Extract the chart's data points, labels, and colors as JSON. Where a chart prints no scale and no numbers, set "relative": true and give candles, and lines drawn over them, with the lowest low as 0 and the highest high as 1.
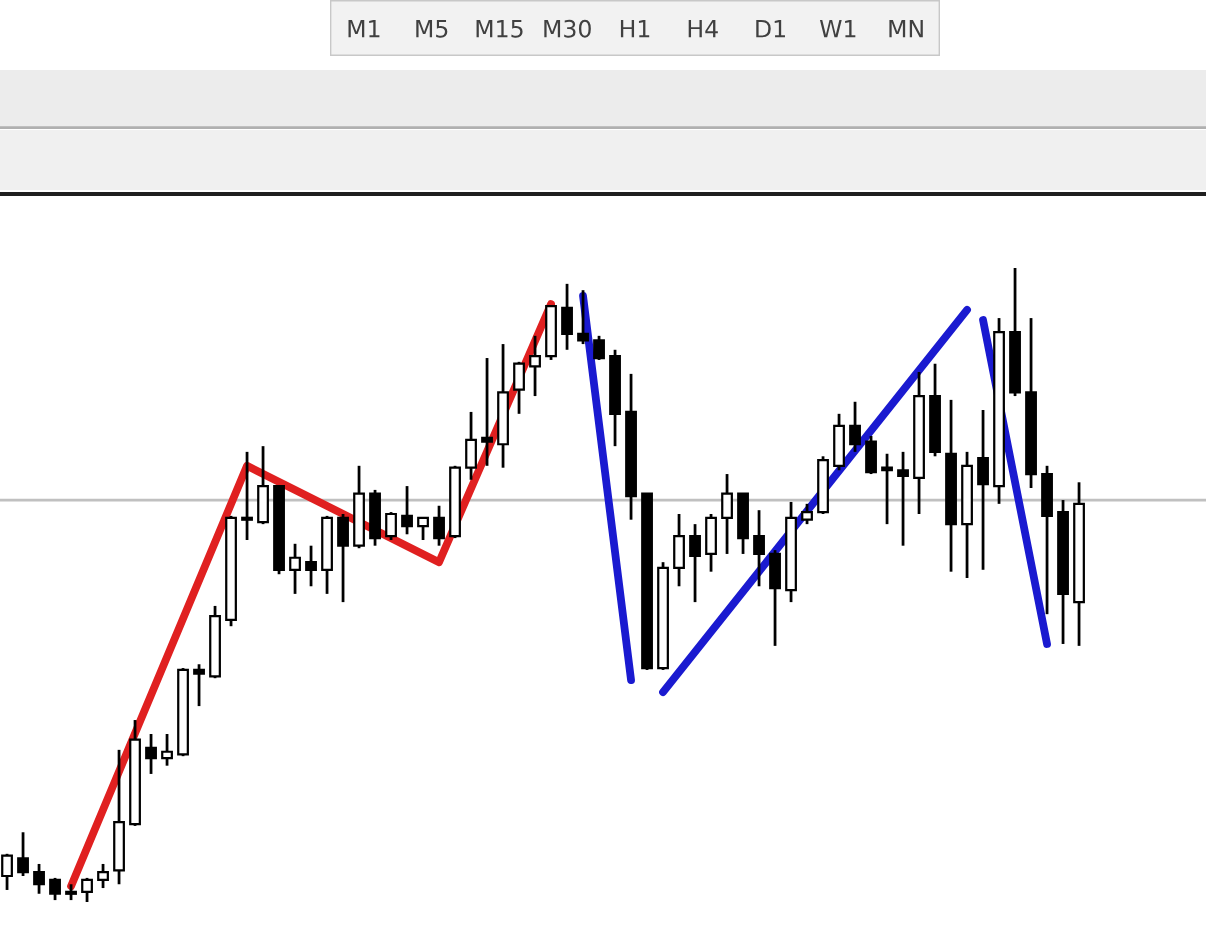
{
  "chart_data": {
    "type": "candlestick",
    "relative": true,
    "categories": [
      null,
      null,
      null,
      null,
      null,
      null,
      null,
      null,
      null,
      null,
      null,
      null,
      null,
      null,
      null,
      null,
      null,
      null,
      null,
      null,
      null,
      null,
      null,
      null,
      null,
      null,
      null,
      null,
      null,
      null,
      null,
      null,
      null,
      null,
      null,
      null,
      null,
      null,
      null,
      null,
      null,
      null,
      null,
      null,
      null,
      null,
      null,
      null,
      null,
      null,
      null,
      null,
      null,
      null,
      null,
      null,
      null,
      null,
      null,
      null,
      null,
      null,
      null,
      null,
      null,
      null,
      null,
      null
    ],
    "ohlc": [
      [
        0.041,
        0.076,
        0.019,
        0.073
      ],
      [
        0.069,
        0.11,
        0.041,
        0.047
      ],
      [
        0.047,
        0.06,
        0.013,
        0.028
      ],
      [
        0.035,
        0.038,
        0.003,
        0.013
      ],
      [
        0.016,
        0.028,
        0.003,
        0.013
      ],
      [
        0.016,
        0.038,
        0,
        0.035
      ],
      [
        0.035,
        0.06,
        0.022,
        0.047
      ],
      [
        0.05,
        0.24,
        0.028,
        0.126
      ],
      [
        0.123,
        0.287,
        0.12,
        0.256
      ],
      [
        0.243,
        0.265,
        0.202,
        0.227
      ],
      [
        0.227,
        0.265,
        0.215,
        0.237
      ],
      [
        0.233,
        0.369,
        0.23,
        0.366
      ],
      [
        0.366,
        0.375,
        0.309,
        0.36
      ],
      [
        0.356,
        0.467,
        0.353,
        0.451
      ],
      [
        0.445,
        0.609,
        0.435,
        0.606
      ],
      [
        0.606,
        0.71,
        0.571,
        0.603
      ],
      [
        0.599,
        0.719,
        0.596,
        0.656
      ],
      [
        0.656,
        0.656,
        0.517,
        0.524
      ],
      [
        0.524,
        0.565,
        0.486,
        0.543
      ],
      [
        0.536,
        0.562,
        0.498,
        0.524
      ],
      [
        0.524,
        0.609,
        0.486,
        0.606
      ],
      [
        0.606,
        0.612,
        0.473,
        0.562
      ],
      [
        0.562,
        0.688,
        0.558,
        0.644
      ],
      [
        0.644,
        0.65,
        0.562,
        0.574
      ],
      [
        0.577,
        0.615,
        0.571,
        0.612
      ],
      [
        0.609,
        0.656,
        0.58,
        0.593
      ],
      [
        0.593,
        0.606,
        0.571,
        0.606
      ],
      [
        0.606,
        0.625,
        0.562,
        0.574
      ],
      [
        0.577,
        0.688,
        0.574,
        0.685
      ],
      [
        0.685,
        0.773,
        0.666,
        0.729
      ],
      [
        0.732,
        0.858,
        0.688,
        0.726
      ],
      [
        0.722,
        0.88,
        0.685,
        0.804
      ],
      [
        0.808,
        0.852,
        0.77,
        0.849
      ],
      [
        0.845,
        0.893,
        0.798,
        0.861
      ],
      [
        0.861,
        0.94,
        0.855,
        0.94
      ],
      [
        0.937,
        0.975,
        0.871,
        0.896
      ],
      [
        0.896,
        0.965,
        0.88,
        0.886
      ],
      [
        0.886,
        0.893,
        0.855,
        0.858
      ],
      [
        0.861,
        0.871,
        0.719,
        0.77
      ],
      [
        0.773,
        0.833,
        0.603,
        0.64
      ],
      [
        0.644,
        0.644,
        0.366,
        0.369
      ],
      [
        0.369,
        0.536,
        0.366,
        0.527
      ],
      [
        0.527,
        0.612,
        0.498,
        0.577
      ],
      [
        0.577,
        0.596,
        0.473,
        0.546
      ],
      [
        0.549,
        0.612,
        0.521,
        0.606
      ],
      [
        0.606,
        0.675,
        0.549,
        0.644
      ],
      [
        0.644,
        0.644,
        0.549,
        0.574
      ],
      [
        0.577,
        0.618,
        0.498,
        0.549
      ],
      [
        0.549,
        0.555,
        0.404,
        0.495
      ],
      [
        0.492,
        0.631,
        0.473,
        0.606
      ],
      [
        0.603,
        0.628,
        0.596,
        0.615
      ],
      [
        0.615,
        0.703,
        0.612,
        0.697
      ],
      [
        0.688,
        0.77,
        0.681,
        0.751
      ],
      [
        0.751,
        0.789,
        0.71,
        0.722
      ],
      [
        0.726,
        0.735,
        0.675,
        0.678
      ],
      [
        0.685,
        0.707,
        0.596,
        0.681
      ],
      [
        0.681,
        0.71,
        0.562,
        0.672
      ],
      [
        0.669,
        0.836,
        0.612,
        0.798
      ],
      [
        0.798,
        0.849,
        0.703,
        0.71
      ],
      [
        0.707,
        0.792,
        0.521,
        0.596
      ],
      [
        0.596,
        0.71,
        0.511,
        0.688
      ],
      [
        0.7,
        0.776,
        0.524,
        0.659
      ],
      [
        0.656,
        0.921,
        0.628,
        0.899
      ],
      [
        0.899,
        1,
        0.798,
        0.804
      ],
      [
        0.804,
        0.921,
        0.653,
        0.675
      ],
      [
        0.675,
        0.688,
        0.454,
        0.609
      ],
      [
        0.615,
        0.634,
        0.407,
        0.486
      ],
      [
        0.473,
        0.662,
        0.404,
        0.628
      ]
    ],
    "series": [
      {
        "type": "line",
        "color": "#e02020",
        "values": [
          null,
          null,
          null,
          null,
          0.025,
          null,
          null,
          null,
          null,
          null,
          null,
          null,
          null,
          null,
          null,
          0.688,
          null,
          null,
          null,
          null,
          null,
          null,
          null,
          null,
          null,
          null,
          null,
          0.536,
          null,
          null,
          null,
          null,
          null,
          null,
          0.943,
          null,
          null,
          null,
          null,
          null,
          null,
          null,
          null,
          null,
          null,
          null,
          null,
          null,
          null,
          null,
          null,
          null,
          null,
          null,
          null,
          null,
          null,
          null,
          null,
          null,
          null,
          null,
          null,
          null,
          null,
          null,
          null,
          null
        ]
      },
      {
        "type": "line",
        "color": "#1a1ad0",
        "values": [
          null,
          null,
          null,
          null,
          null,
          null,
          null,
          null,
          null,
          null,
          null,
          null,
          null,
          null,
          null,
          null,
          null,
          null,
          null,
          null,
          null,
          null,
          null,
          null,
          null,
          null,
          null,
          null,
          null,
          null,
          null,
          null,
          null,
          null,
          null,
          null,
          0.956,
          null,
          null,
          0.35,
          null,
          null,
          null,
          null,
          null,
          null,
          null,
          null,
          null,
          null,
          null,
          null,
          null,
          null,
          null,
          null,
          null,
          null,
          null,
          null,
          null,
          null,
          null,
          null,
          null,
          null,
          null,
          null
        ]
      },
      {
        "type": "line",
        "color": "#1a1ad0",
        "values": [
          null,
          null,
          null,
          null,
          null,
          null,
          null,
          null,
          null,
          null,
          null,
          null,
          null,
          null,
          null,
          null,
          null,
          null,
          null,
          null,
          null,
          null,
          null,
          null,
          null,
          null,
          null,
          null,
          null,
          null,
          null,
          null,
          null,
          null,
          null,
          null,
          null,
          null,
          null,
          null,
          null,
          0.331,
          null,
          null,
          null,
          null,
          null,
          null,
          null,
          null,
          null,
          null,
          null,
          null,
          null,
          null,
          null,
          null,
          null,
          null,
          0.934,
          null,
          null,
          null,
          null,
          null,
          null,
          null
        ]
      },
      {
        "type": "line",
        "color": "#1a1ad0",
        "values": [
          null,
          null,
          null,
          null,
          null,
          null,
          null,
          null,
          null,
          null,
          null,
          null,
          null,
          null,
          null,
          null,
          null,
          null,
          null,
          null,
          null,
          null,
          null,
          null,
          null,
          null,
          null,
          null,
          null,
          null,
          null,
          null,
          null,
          null,
          null,
          null,
          null,
          null,
          null,
          null,
          null,
          null,
          null,
          null,
          null,
          null,
          null,
          null,
          null,
          null,
          null,
          null,
          null,
          null,
          null,
          null,
          null,
          null,
          null,
          null,
          null,
          0.918,
          null,
          null,
          null,
          0.407,
          null,
          null
        ]
      }
    ],
    "ref_lines": [
      {
        "axis": "y",
        "value": 0.634,
        "color": "#c0c0c0"
      }
    ],
    "annotations": [
      "M1",
      "M5",
      "M15",
      "M30",
      "H1",
      "H4",
      "D1",
      "W1",
      "MN"
    ],
    "grid": false,
    "legend": false
  }
}
